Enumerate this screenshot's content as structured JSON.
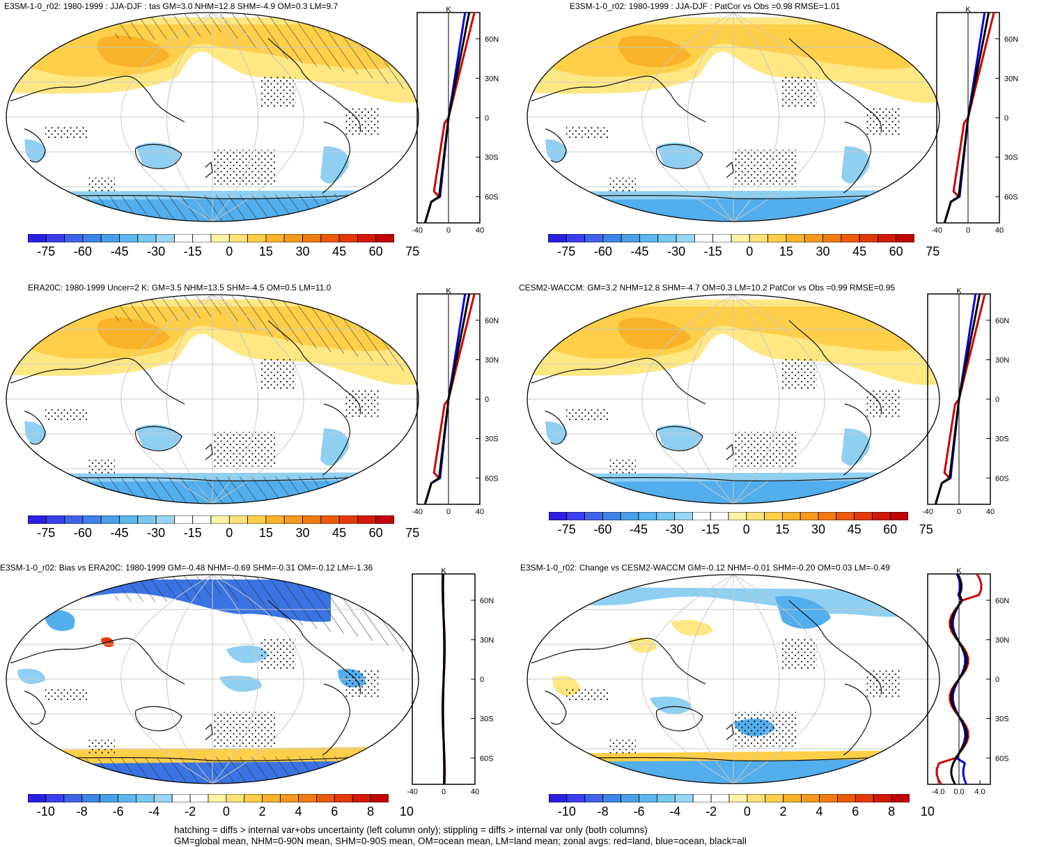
{
  "panels": [
    {
      "id": "p1",
      "title": "E3SM-1-0_r02: 1980-1999 : JJA-DJF : tas GM=3.0 NHM=12.8 SHM=-4.9 OM=0.3 LM=9.7",
      "map_style": "warm",
      "hatched": true,
      "colorbar": [
        "-75",
        "-60",
        "-45",
        "-30",
        "-15",
        "0",
        "15",
        "30",
        "45",
        "60",
        "75"
      ],
      "zonal_ticks_y": [
        "60N",
        "30N",
        "0",
        "30S",
        "60S"
      ],
      "zonal_ticks_x": [
        "-40",
        "0",
        "40"
      ],
      "zonal_unit": "K"
    },
    {
      "id": "p2",
      "title": "E3SM-1-0_r02: 1980-1999 : JJA-DJF : PatCor vs Obs =0.98 RMSE=1.01",
      "map_style": "warm",
      "hatched": false,
      "colorbar": [
        "-75",
        "-60",
        "-45",
        "-30",
        "-15",
        "0",
        "15",
        "30",
        "45",
        "60",
        "75"
      ],
      "zonal_ticks_y": [
        "60N",
        "30N",
        "0",
        "30S",
        "60S"
      ],
      "zonal_ticks_x": [
        "-40",
        "0",
        "40"
      ],
      "zonal_unit": "K"
    },
    {
      "id": "p3",
      "title": "ERA20C: 1980-1999 Uncer=2 K: GM=3.5 NHM=13.5 SHM=-4.5 OM=0.5 LM=11.0",
      "map_style": "warm",
      "hatched": true,
      "colorbar": [
        "-75",
        "-60",
        "-45",
        "-30",
        "-15",
        "0",
        "15",
        "30",
        "45",
        "60",
        "75"
      ],
      "zonal_ticks_y": [
        "60N",
        "30N",
        "0",
        "30S",
        "60S"
      ],
      "zonal_ticks_x": [
        "-40",
        "0",
        "40"
      ],
      "zonal_unit": "K"
    },
    {
      "id": "p4",
      "title": "CESM2-WACCM: GM=3.2 NHM=12.8 SHM=-4.7 OM=0.3 LM=10.2 PatCor vs Obs =0.99 RMSE=0.95",
      "map_style": "warm",
      "hatched": false,
      "colorbar": [
        "-75",
        "-60",
        "-45",
        "-30",
        "-15",
        "0",
        "15",
        "30",
        "45",
        "60",
        "75"
      ],
      "zonal_ticks_y": [
        "60N",
        "30N",
        "0",
        "30S",
        "60S"
      ],
      "zonal_ticks_x": [
        "-40",
        "0",
        "40"
      ],
      "zonal_unit": "K"
    },
    {
      "id": "p5",
      "title": "E3SM-1-0_r02: Bias vs ERA20C: 1980-1999 GM=-0.48 NHM=-0.69 SHM=-0.31 OM=-0.12 LM=-1.36",
      "map_style": "bias",
      "hatched": true,
      "colorbar": [
        "-10",
        "-8",
        "-6",
        "-4",
        "-2",
        "0",
        "2",
        "4",
        "6",
        "8",
        "10"
      ],
      "zonal_ticks_y": [
        "60N",
        "30N",
        "0",
        "30S",
        "60S"
      ],
      "zonal_ticks_x": [
        "-40",
        "0",
        "40"
      ],
      "zonal_unit": "K"
    },
    {
      "id": "p6",
      "title": "E3SM-1-0_r02: Change vs CESM2-WACCM GM=-0.12 NHM=-0.01 SHM=-0.20 OM=0.03 LM=-0.49",
      "map_style": "change",
      "hatched": false,
      "colorbar": [
        "-10",
        "-8",
        "-6",
        "-4",
        "-2",
        "0",
        "2",
        "4",
        "6",
        "8",
        "10"
      ],
      "zonal_ticks_y": [
        "60N",
        "30N",
        "0",
        "30S",
        "60S"
      ],
      "zonal_ticks_x": [
        "-4.0",
        "0.0",
        "4.0"
      ],
      "zonal_unit": "K"
    }
  ],
  "colors": {
    "scale": [
      "#2b1fe0",
      "#3a3ff0",
      "#3f63e6",
      "#3f83e8",
      "#4aa0e8",
      "#5cb7ee",
      "#79c8f2",
      "#9ad6f4",
      "#ffffff",
      "#ffffff",
      "#fff3a8",
      "#ffe27a",
      "#ffcf4a",
      "#f8b32a",
      "#f59a1e",
      "#f27a12",
      "#ec5a0c",
      "#e33a08",
      "#d21a06",
      "#c00404"
    ],
    "land": "#cc0000",
    "ocean": "#0000dd",
    "all": "#000000"
  },
  "footer": {
    "line1": "hatching = diffs > internal var+obs uncertainty (left column only); stippling = diffs > internal var only (both columns)",
    "line2": "GM=global mean, NHM=0-90N mean, SHM=0-90S mean, OM=ocean mean, LM=land mean; zonal avgs: red=land, blue=ocean, black=all"
  }
}
